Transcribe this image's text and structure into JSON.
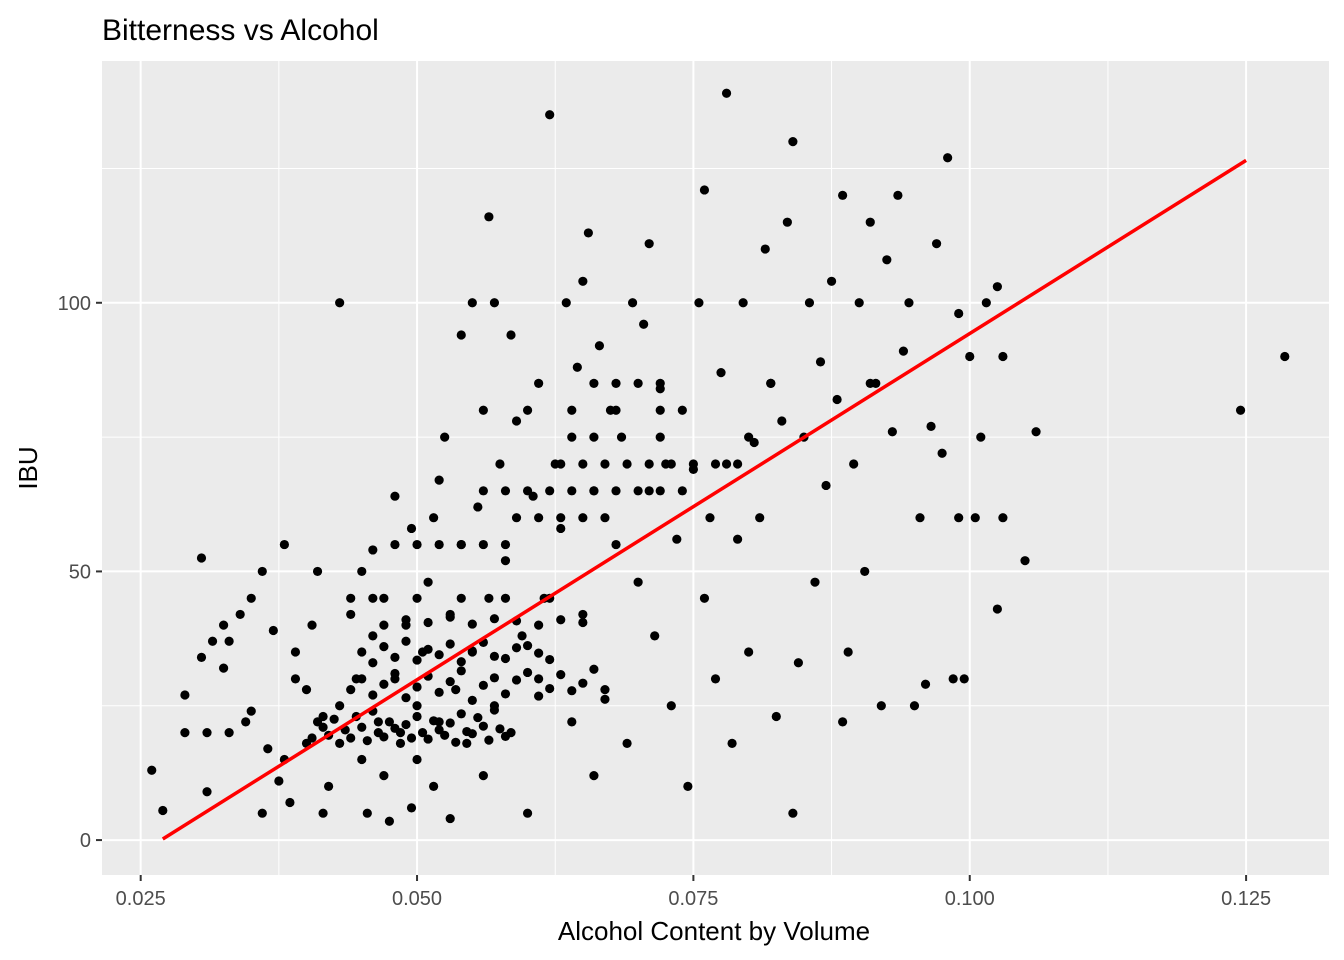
{
  "chart_data": {
    "type": "scatter",
    "title": "Bitterness vs Alcohol",
    "xlabel": "Alcohol Content by Volume",
    "ylabel": "IBU",
    "xlim": [
      0.0215,
      0.1325
    ],
    "ylim": [
      -6.5,
      145
    ],
    "x_ticks": [
      0.025,
      0.05,
      0.075,
      0.1,
      0.125
    ],
    "x_tick_labels": [
      "0.025",
      "0.050",
      "0.075",
      "0.100",
      "0.125"
    ],
    "y_ticks": [
      0,
      50,
      100
    ],
    "y_tick_labels": [
      "0",
      "50",
      "100"
    ],
    "grid": true,
    "legend": "none",
    "panel_background": "#ebebeb",
    "grid_color": "#ffffff",
    "point_color": "#000000",
    "fit_line_color": "#ff0000",
    "points": [
      [
        0.026,
        13
      ],
      [
        0.027,
        5.5
      ],
      [
        0.029,
        27
      ],
      [
        0.029,
        20
      ],
      [
        0.0305,
        52.5
      ],
      [
        0.0305,
        34
      ],
      [
        0.031,
        9
      ],
      [
        0.031,
        20
      ],
      [
        0.0315,
        37
      ],
      [
        0.0325,
        40
      ],
      [
        0.0325,
        32
      ],
      [
        0.033,
        20
      ],
      [
        0.033,
        37
      ],
      [
        0.034,
        42
      ],
      [
        0.0345,
        22
      ],
      [
        0.035,
        45
      ],
      [
        0.035,
        24
      ],
      [
        0.036,
        50
      ],
      [
        0.036,
        5
      ],
      [
        0.0365,
        17
      ],
      [
        0.037,
        39
      ],
      [
        0.0375,
        11
      ],
      [
        0.038,
        55
      ],
      [
        0.038,
        15
      ],
      [
        0.0385,
        7
      ],
      [
        0.039,
        35
      ],
      [
        0.039,
        30
      ],
      [
        0.04,
        18
      ],
      [
        0.04,
        28
      ],
      [
        0.0405,
        40
      ],
      [
        0.041,
        50
      ],
      [
        0.0415,
        5
      ],
      [
        0.0415,
        23
      ],
      [
        0.042,
        10
      ],
      [
        0.043,
        100
      ],
      [
        0.043,
        25
      ],
      [
        0.044,
        42
      ],
      [
        0.0445,
        30
      ],
      [
        0.045,
        50
      ],
      [
        0.045,
        15
      ],
      [
        0.0455,
        5
      ],
      [
        0.046,
        54
      ],
      [
        0.046,
        38
      ],
      [
        0.0465,
        22
      ],
      [
        0.047,
        12
      ],
      [
        0.047,
        45
      ],
      [
        0.0475,
        3.5
      ],
      [
        0.048,
        64
      ],
      [
        0.048,
        30
      ],
      [
        0.0485,
        20
      ],
      [
        0.049,
        40
      ],
      [
        0.0495,
        58
      ],
      [
        0.0495,
        6
      ],
      [
        0.05,
        15
      ],
      [
        0.05,
        25
      ],
      [
        0.0505,
        35
      ],
      [
        0.051,
        48
      ],
      [
        0.0515,
        60
      ],
      [
        0.0515,
        10
      ],
      [
        0.052,
        67
      ],
      [
        0.052,
        22
      ],
      [
        0.0525,
        75
      ],
      [
        0.053,
        42
      ],
      [
        0.053,
        4
      ],
      [
        0.0535,
        28
      ],
      [
        0.054,
        94
      ],
      [
        0.054,
        55
      ],
      [
        0.0545,
        18
      ],
      [
        0.055,
        100
      ],
      [
        0.055,
        35
      ],
      [
        0.0555,
        62
      ],
      [
        0.056,
        12
      ],
      [
        0.0565,
        116
      ],
      [
        0.0565,
        45
      ],
      [
        0.057,
        100
      ],
      [
        0.057,
        25
      ],
      [
        0.0575,
        70
      ],
      [
        0.058,
        52
      ],
      [
        0.0585,
        94
      ],
      [
        0.0585,
        20
      ],
      [
        0.059,
        78
      ],
      [
        0.0595,
        38
      ],
      [
        0.06,
        5
      ],
      [
        0.0605,
        64
      ],
      [
        0.061,
        85
      ],
      [
        0.061,
        30
      ],
      [
        0.0615,
        45
      ],
      [
        0.062,
        135
      ],
      [
        0.0625,
        70
      ],
      [
        0.063,
        58
      ],
      [
        0.0635,
        100
      ],
      [
        0.064,
        22
      ],
      [
        0.0645,
        88
      ],
      [
        0.065,
        104
      ],
      [
        0.065,
        42
      ],
      [
        0.0655,
        113
      ],
      [
        0.066,
        65
      ],
      [
        0.066,
        12
      ],
      [
        0.0665,
        92
      ],
      [
        0.067,
        28
      ],
      [
        0.0675,
        80
      ],
      [
        0.068,
        55
      ],
      [
        0.0685,
        75
      ],
      [
        0.069,
        18
      ],
      [
        0.0695,
        100
      ],
      [
        0.07,
        48
      ],
      [
        0.0705,
        96
      ],
      [
        0.071,
        111
      ],
      [
        0.071,
        65
      ],
      [
        0.0715,
        38
      ],
      [
        0.072,
        84
      ],
      [
        0.0725,
        70
      ],
      [
        0.073,
        25
      ],
      [
        0.0735,
        56
      ],
      [
        0.074,
        80
      ],
      [
        0.0745,
        10
      ],
      [
        0.075,
        69
      ],
      [
        0.0755,
        100
      ],
      [
        0.076,
        121
      ],
      [
        0.076,
        45
      ],
      [
        0.0765,
        60
      ],
      [
        0.077,
        30
      ],
      [
        0.0775,
        87
      ],
      [
        0.078,
        139
      ],
      [
        0.078,
        70
      ],
      [
        0.0785,
        18
      ],
      [
        0.079,
        56
      ],
      [
        0.0795,
        100
      ],
      [
        0.08,
        35
      ],
      [
        0.0805,
        74
      ],
      [
        0.081,
        60
      ],
      [
        0.0815,
        110
      ],
      [
        0.082,
        85
      ],
      [
        0.0825,
        23
      ],
      [
        0.083,
        78
      ],
      [
        0.0835,
        115
      ],
      [
        0.084,
        130
      ],
      [
        0.084,
        5
      ],
      [
        0.0845,
        33
      ],
      [
        0.085,
        75
      ],
      [
        0.0855,
        100
      ],
      [
        0.086,
        48
      ],
      [
        0.0865,
        89
      ],
      [
        0.087,
        66
      ],
      [
        0.0875,
        104
      ],
      [
        0.088,
        82
      ],
      [
        0.0885,
        120
      ],
      [
        0.0885,
        22
      ],
      [
        0.089,
        35
      ],
      [
        0.0895,
        70
      ],
      [
        0.09,
        100
      ],
      [
        0.0905,
        50
      ],
      [
        0.091,
        115
      ],
      [
        0.0915,
        85
      ],
      [
        0.092,
        25
      ],
      [
        0.0925,
        108
      ],
      [
        0.093,
        76
      ],
      [
        0.0935,
        120
      ],
      [
        0.094,
        91
      ],
      [
        0.0945,
        100
      ],
      [
        0.095,
        25
      ],
      [
        0.0955,
        60
      ],
      [
        0.096,
        29
      ],
      [
        0.0965,
        77
      ],
      [
        0.097,
        111
      ],
      [
        0.0975,
        72
      ],
      [
        0.098,
        127
      ],
      [
        0.0985,
        30
      ],
      [
        0.099,
        60
      ],
      [
        0.099,
        98
      ],
      [
        0.0995,
        30
      ],
      [
        0.1,
        90
      ],
      [
        0.1005,
        60
      ],
      [
        0.101,
        75
      ],
      [
        0.1015,
        100
      ],
      [
        0.1025,
        103
      ],
      [
        0.1025,
        43
      ],
      [
        0.103,
        60
      ],
      [
        0.103,
        90
      ],
      [
        0.105,
        52
      ],
      [
        0.106,
        76
      ],
      [
        0.1245,
        80
      ],
      [
        0.1285,
        90
      ],
      [
        0.0405,
        19
      ],
      [
        0.041,
        22
      ],
      [
        0.0415,
        21
      ],
      [
        0.042,
        19.5
      ],
      [
        0.0425,
        22.5
      ],
      [
        0.043,
        18
      ],
      [
        0.0435,
        20.5
      ],
      [
        0.044,
        19
      ],
      [
        0.0445,
        23
      ],
      [
        0.045,
        21
      ],
      [
        0.0455,
        18.5
      ],
      [
        0.046,
        24
      ],
      [
        0.0465,
        20
      ],
      [
        0.047,
        19.2
      ],
      [
        0.0475,
        22
      ],
      [
        0.048,
        20.8
      ],
      [
        0.0485,
        18
      ],
      [
        0.049,
        21.5
      ],
      [
        0.0495,
        19
      ],
      [
        0.05,
        23
      ],
      [
        0.0505,
        20
      ],
      [
        0.051,
        18.8
      ],
      [
        0.0515,
        22.2
      ],
      [
        0.052,
        20.5
      ],
      [
        0.0525,
        19.5
      ],
      [
        0.053,
        21.8
      ],
      [
        0.0535,
        18.2
      ],
      [
        0.054,
        23.5
      ],
      [
        0.0545,
        20.2
      ],
      [
        0.055,
        19.8
      ],
      [
        0.0555,
        22.8
      ],
      [
        0.056,
        21.2
      ],
      [
        0.0565,
        18.6
      ],
      [
        0.057,
        24.2
      ],
      [
        0.0575,
        20.7
      ],
      [
        0.058,
        19.3
      ],
      [
        0.044,
        28
      ],
      [
        0.045,
        30
      ],
      [
        0.046,
        27
      ],
      [
        0.047,
        29
      ],
      [
        0.048,
        31
      ],
      [
        0.049,
        26.5
      ],
      [
        0.05,
        28.5
      ],
      [
        0.051,
        30.5
      ],
      [
        0.052,
        27.5
      ],
      [
        0.053,
        29.5
      ],
      [
        0.054,
        31.5
      ],
      [
        0.055,
        26
      ],
      [
        0.056,
        28.8
      ],
      [
        0.057,
        30.2
      ],
      [
        0.058,
        27.2
      ],
      [
        0.059,
        29.8
      ],
      [
        0.06,
        31.2
      ],
      [
        0.061,
        26.8
      ],
      [
        0.062,
        28.2
      ],
      [
        0.063,
        30.8
      ],
      [
        0.064,
        27.8
      ],
      [
        0.065,
        29.2
      ],
      [
        0.066,
        31.8
      ],
      [
        0.067,
        26.2
      ],
      [
        0.045,
        35
      ],
      [
        0.046,
        33
      ],
      [
        0.047,
        36
      ],
      [
        0.048,
        34
      ],
      [
        0.049,
        37
      ],
      [
        0.05,
        33.5
      ],
      [
        0.051,
        35.5
      ],
      [
        0.052,
        34.5
      ],
      [
        0.053,
        36.5
      ],
      [
        0.054,
        33.2
      ],
      [
        0.055,
        35.2
      ],
      [
        0.056,
        36.8
      ],
      [
        0.057,
        34.2
      ],
      [
        0.058,
        33.8
      ],
      [
        0.059,
        35.8
      ],
      [
        0.06,
        36.2
      ],
      [
        0.061,
        34.8
      ],
      [
        0.062,
        33.6
      ],
      [
        0.047,
        40
      ],
      [
        0.049,
        41
      ],
      [
        0.051,
        40.5
      ],
      [
        0.053,
        41.5
      ],
      [
        0.055,
        40.2
      ],
      [
        0.057,
        41.2
      ],
      [
        0.059,
        40.8
      ],
      [
        0.061,
        40
      ],
      [
        0.063,
        41
      ],
      [
        0.065,
        40.5
      ],
      [
        0.056,
        65
      ],
      [
        0.058,
        65
      ],
      [
        0.06,
        65
      ],
      [
        0.062,
        65
      ],
      [
        0.064,
        65
      ],
      [
        0.066,
        65
      ],
      [
        0.068,
        65
      ],
      [
        0.07,
        65
      ],
      [
        0.072,
        65
      ],
      [
        0.074,
        65
      ],
      [
        0.063,
        70
      ],
      [
        0.065,
        70
      ],
      [
        0.067,
        70
      ],
      [
        0.069,
        70
      ],
      [
        0.071,
        70
      ],
      [
        0.073,
        70
      ],
      [
        0.075,
        70
      ],
      [
        0.077,
        70
      ],
      [
        0.079,
        70
      ],
      [
        0.059,
        60
      ],
      [
        0.061,
        60
      ],
      [
        0.063,
        60
      ],
      [
        0.065,
        60
      ],
      [
        0.067,
        60
      ],
      [
        0.048,
        55
      ],
      [
        0.05,
        55
      ],
      [
        0.052,
        55
      ],
      [
        0.054,
        55
      ],
      [
        0.056,
        55
      ],
      [
        0.058,
        55
      ],
      [
        0.044,
        45
      ],
      [
        0.046,
        45
      ],
      [
        0.05,
        45
      ],
      [
        0.054,
        45
      ],
      [
        0.058,
        45
      ],
      [
        0.062,
        45
      ],
      [
        0.066,
        85
      ],
      [
        0.068,
        85
      ],
      [
        0.07,
        85
      ],
      [
        0.072,
        85
      ],
      [
        0.082,
        85
      ],
      [
        0.091,
        85
      ],
      [
        0.056,
        80
      ],
      [
        0.06,
        80
      ],
      [
        0.064,
        80
      ],
      [
        0.068,
        80
      ],
      [
        0.072,
        80
      ],
      [
        0.064,
        75
      ],
      [
        0.066,
        75
      ],
      [
        0.072,
        75
      ],
      [
        0.08,
        75
      ]
    ],
    "fit_line": {
      "x": [
        0.027,
        0.125
      ],
      "y": [
        0.2,
        126.5
      ]
    }
  }
}
